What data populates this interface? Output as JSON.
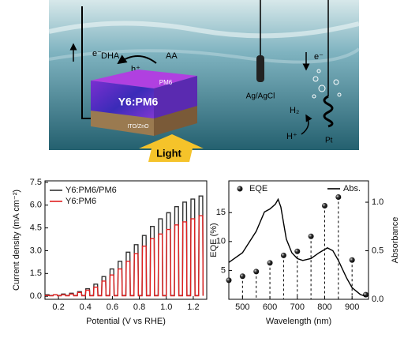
{
  "diagram": {
    "electron_left": "e⁻",
    "dha": "DHA",
    "aa": "AA",
    "hole": "h⁺",
    "top_layer": "PM6",
    "active_layer": "Y6:PM6",
    "bottom_layer": "ITO/ZnO",
    "light": "Light",
    "reference": "Ag/AgCl",
    "electron_right": "e⁻",
    "h2": "H₂",
    "proton": "H⁺",
    "counter": "Pt"
  },
  "chart_data": [
    {
      "type": "line",
      "x_label": "Potential (V vs RHE)",
      "y_label": "Current density (mA cm⁻²)",
      "xlim": [
        0.1,
        1.3
      ],
      "xticks": [
        0.2,
        0.4,
        0.6,
        0.8,
        {
          "value": 1,
          "label": "1.0"
        },
        1.2
      ],
      "ylim": [
        -0.2,
        7.6
      ],
      "yticks": [
        {
          "value": 0,
          "label": "0.0"
        },
        1.5,
        {
          "value": 3,
          "label": "3.0"
        },
        4.5,
        {
          "value": 6,
          "label": "6.0"
        },
        7.5
      ],
      "legend": "upper left",
      "x": [
        0.1,
        0.103,
        0.13,
        0.133,
        0.16,
        0.163,
        0.19,
        0.193,
        0.22,
        0.223,
        0.25,
        0.253,
        0.28,
        0.283,
        0.31,
        0.313,
        0.34,
        0.343,
        0.37,
        0.373,
        0.4,
        0.403,
        0.43,
        0.433,
        0.46,
        0.463,
        0.49,
        0.493,
        0.52,
        0.523,
        0.55,
        0.553,
        0.58,
        0.583,
        0.61,
        0.613,
        0.64,
        0.643,
        0.67,
        0.673,
        0.7,
        0.703,
        0.73,
        0.733,
        0.76,
        0.763,
        0.79,
        0.793,
        0.82,
        0.823,
        0.85,
        0.853,
        0.88,
        0.883,
        0.91,
        0.913,
        0.94,
        0.943,
        0.97,
        0.973,
        1,
        1.003,
        1.03,
        1.033,
        1.06,
        1.063,
        1.09,
        1.093,
        1.12,
        1.123,
        1.15,
        1.153,
        1.18,
        1.183,
        1.21,
        1.213,
        1.24,
        1.243,
        1.27,
        1.273
      ],
      "series": [
        {
          "name": "Y6:PM6/PM6",
          "color": "#333333",
          "values": [
            0.05,
            0.1,
            0.1,
            0.05,
            0.05,
            0.1,
            0.1,
            0.05,
            0.05,
            0.15,
            0.15,
            0.05,
            0.05,
            0.2,
            0.2,
            0.05,
            0.05,
            0.3,
            0.3,
            0.05,
            0.05,
            0.5,
            0.5,
            0.05,
            0.05,
            0.8,
            0.8,
            0.05,
            0.05,
            1.3,
            1.3,
            0.05,
            0.05,
            1.8,
            1.8,
            0.05,
            0.05,
            2.3,
            2.3,
            0.05,
            0.05,
            2.9,
            2.9,
            0.05,
            0.05,
            3.4,
            3.4,
            0.05,
            0.05,
            4.0,
            4.0,
            0.05,
            0.05,
            4.6,
            4.6,
            0.05,
            0.05,
            5.1,
            5.1,
            0.05,
            0.05,
            5.5,
            5.5,
            0.05,
            0.05,
            5.9,
            5.9,
            0.05,
            0.05,
            6.2,
            6.2,
            0.05,
            0.05,
            6.4,
            6.4,
            0.05,
            0.05,
            6.6,
            6.6,
            0.05
          ]
        },
        {
          "name": "Y6:PM6",
          "color": "#e02020",
          "values": [
            0.03,
            0.05,
            0.05,
            0.03,
            0.03,
            0.1,
            0.1,
            0.03,
            0.03,
            0.1,
            0.1,
            0.03,
            0.03,
            0.15,
            0.15,
            0.03,
            0.03,
            0.25,
            0.25,
            0.03,
            0.03,
            0.4,
            0.4,
            0.03,
            0.03,
            0.6,
            0.6,
            0.03,
            0.03,
            1.0,
            1.0,
            0.03,
            0.03,
            1.4,
            1.4,
            0.03,
            0.03,
            1.8,
            1.8,
            0.03,
            0.03,
            2.3,
            2.3,
            0.03,
            0.03,
            2.8,
            2.8,
            0.03,
            0.03,
            3.3,
            3.3,
            0.03,
            0.03,
            3.8,
            3.8,
            0.03,
            0.03,
            4.1,
            4.1,
            0.03,
            0.03,
            4.4,
            4.4,
            0.03,
            0.03,
            4.7,
            4.7,
            0.03,
            0.03,
            4.9,
            4.9,
            0.03,
            0.03,
            5.1,
            5.1,
            0.03,
            0.03,
            5.3,
            5.3,
            0.03
          ]
        }
      ]
    },
    {
      "type": "scatter",
      "x_label": "Wavelength (nm)",
      "y_label": "EQE (%)",
      "y2_label": "Absorbance",
      "xlim": [
        450,
        960
      ],
      "xticks": [
        500,
        600,
        700,
        800,
        900
      ],
      "ylim": [
        0,
        20.5
      ],
      "yticks": [
        5,
        10,
        15
      ],
      "y2lim": [
        0,
        1.22
      ],
      "y2ticks": [
        {
          "value": 0,
          "label": "0.0"
        },
        {
          "value": 0.5,
          "label": "0.5"
        },
        {
          "value": 1,
          "label": "1.0"
        }
      ],
      "legend": "upper",
      "series": [
        {
          "name": "EQE",
          "color": "#111111",
          "drop_lines": true,
          "x": [
            450,
            500,
            550,
            600,
            650,
            700,
            750,
            800,
            850,
            900,
            950
          ],
          "values": [
            3.3,
            4.0,
            4.8,
            6.3,
            7.6,
            8.3,
            10.9,
            16.2,
            17.7,
            6.8,
            0.8
          ]
        },
        {
          "name": "Abs.",
          "type": "line",
          "axis": "y2",
          "color": "#000000",
          "x": [
            450,
            500,
            550,
            580,
            600,
            620,
            630,
            640,
            660,
            680,
            700,
            720,
            750,
            780,
            810,
            830,
            850,
            880,
            900,
            930,
            950
          ],
          "values": [
            0.38,
            0.48,
            0.7,
            0.9,
            0.93,
            0.98,
            1.03,
            0.95,
            0.62,
            0.48,
            0.42,
            0.4,
            0.42,
            0.48,
            0.53,
            0.5,
            0.4,
            0.22,
            0.12,
            0.05,
            0.03
          ]
        }
      ]
    }
  ]
}
